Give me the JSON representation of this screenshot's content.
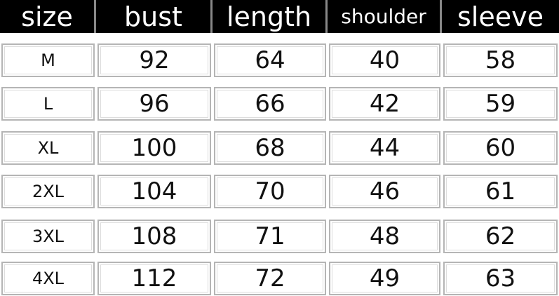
{
  "table": {
    "headers": [
      "size",
      "bust",
      "length",
      "shoulder",
      "sleeve"
    ],
    "rows": [
      [
        "M",
        "92",
        "64",
        "40",
        "58"
      ],
      [
        "L",
        "96",
        "66",
        "42",
        "59"
      ],
      [
        "XL",
        "100",
        "68",
        "44",
        "60"
      ],
      [
        "2XL",
        "104",
        "70",
        "46",
        "61"
      ],
      [
        "3XL",
        "108",
        "71",
        "48",
        "62"
      ],
      [
        "4XL",
        "112",
        "72",
        "49",
        "63"
      ]
    ]
  }
}
